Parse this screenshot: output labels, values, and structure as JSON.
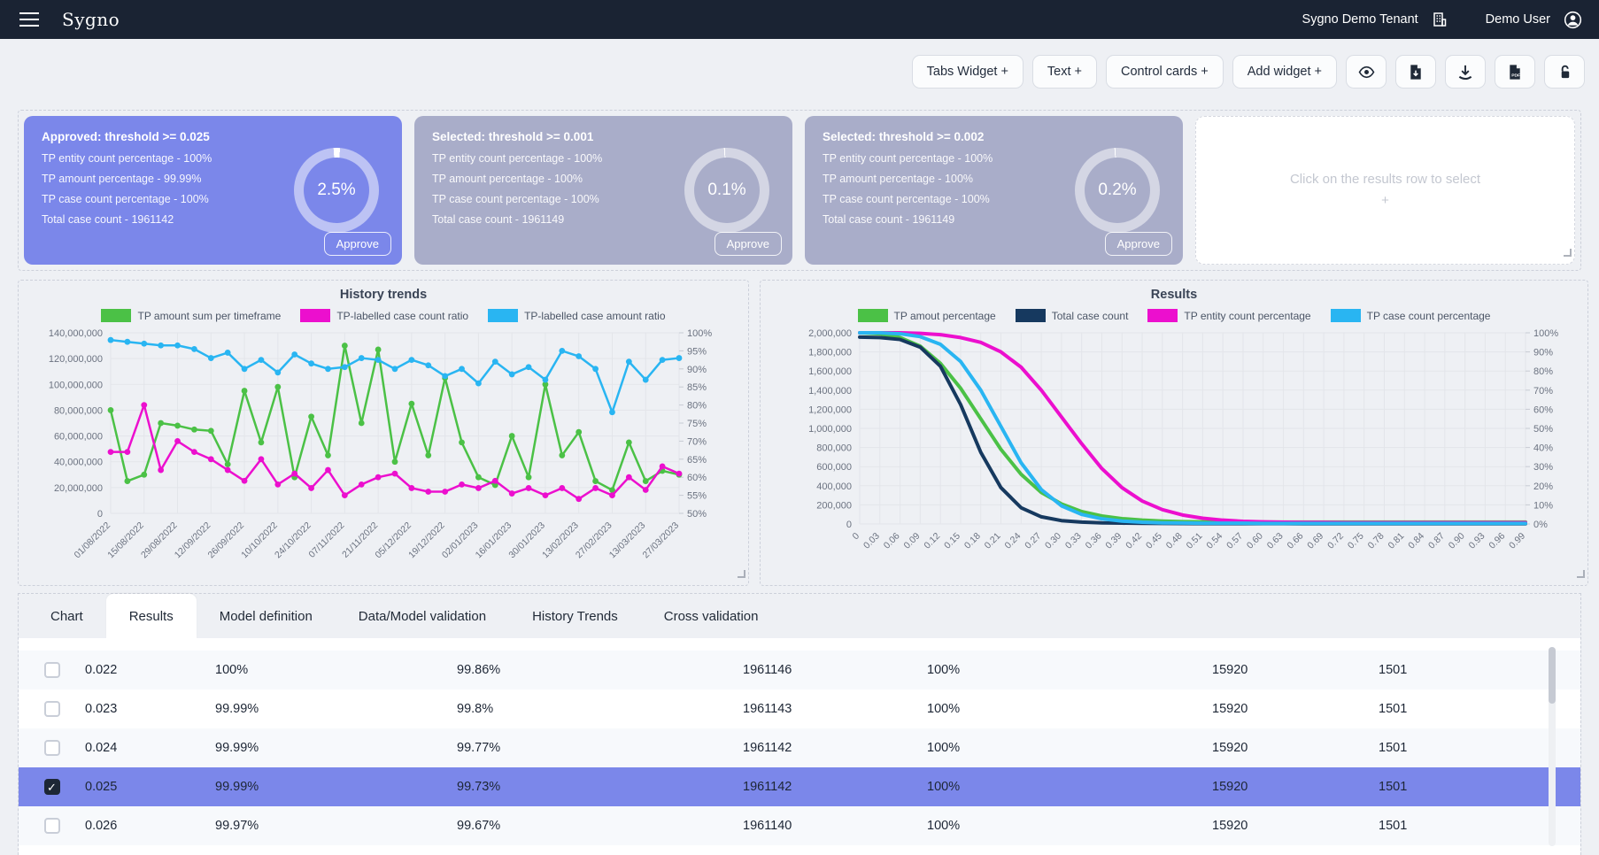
{
  "navbar": {
    "brand": "Sygno",
    "tenant": "Sygno Demo Tenant",
    "user": "Demo User"
  },
  "toolbar": {
    "text_buttons": [
      "Tabs Widget +",
      "Text +",
      "Control cards +",
      "Add widget +"
    ],
    "icon_buttons": [
      "eye-icon",
      "file-export-icon",
      "download-icon",
      "pdf-export-icon",
      "unlock-icon"
    ]
  },
  "cards": [
    {
      "title": "Approved: threshold >= 0.025",
      "lines": [
        "TP entity count percentage - 100%",
        "TP amount percentage - 99.99%",
        "TP case count percentage - 100%",
        "Total case count - 1961142"
      ],
      "donut_value": "2.5%",
      "donut_pct": 2.5,
      "approve_label": "Approve",
      "bg": "#7b87ea"
    },
    {
      "title": "Selected: threshold >= 0.001",
      "lines": [
        "TP entity count percentage - 100%",
        "TP amount percentage - 100%",
        "TP case count percentage - 100%",
        "Total case count - 1961149"
      ],
      "donut_value": "0.1%",
      "donut_pct": 0.1,
      "approve_label": "Approve",
      "bg": "#a9adc9"
    },
    {
      "title": "Selected: threshold >= 0.002",
      "lines": [
        "TP entity count percentage - 100%",
        "TP amount percentage - 100%",
        "TP case count percentage - 100%",
        "Total case count - 1961149"
      ],
      "donut_value": "0.2%",
      "donut_pct": 0.2,
      "approve_label": "Approve",
      "bg": "#a9adc9"
    }
  ],
  "placeholder_card": {
    "text": "Click on the results row to select +"
  },
  "chart_data": [
    {
      "type": "line",
      "title": "History trends",
      "legend_position": "top",
      "grid": true,
      "markers": true,
      "x_labels": [
        "01/08/2022",
        "15/08/2022",
        "29/08/2022",
        "12/09/2022",
        "26/09/2022",
        "10/10/2022",
        "24/10/2022",
        "07/11/2022",
        "21/11/2022",
        "05/12/2022",
        "19/12/2022",
        "02/01/2023",
        "16/01/2023",
        "30/01/2023",
        "13/02/2023",
        "27/02/2023",
        "13/03/2023",
        "27/03/2023"
      ],
      "left_axis": {
        "min": 0,
        "max": 140000000,
        "step": 20000000,
        "format": "number"
      },
      "right_axis": {
        "min": 50,
        "max": 100,
        "step": 5,
        "format": "percent"
      },
      "series": [
        {
          "name": "TP amount sum per timeframe",
          "color": "#4bc146",
          "axis": "left",
          "values": [
            80000000,
            25000000,
            30000000,
            70000000,
            68000000,
            65000000,
            64000000,
            38000000,
            95000000,
            55000000,
            98000000,
            28000000,
            75000000,
            45000000,
            130000000,
            70000000,
            127000000,
            40000000,
            85000000,
            45000000,
            105000000,
            55000000,
            28000000,
            22000000,
            60000000,
            28000000,
            100000000,
            45000000,
            63000000,
            25000000,
            18000000,
            55000000,
            25000000,
            33000000,
            30000000
          ]
        },
        {
          "name": "TP-labelled case count ratio",
          "color": "#ec0fce",
          "axis": "right",
          "values": [
            67,
            67,
            80,
            62,
            70,
            67,
            65,
            62,
            59,
            65,
            58,
            61,
            57,
            62,
            55,
            58,
            60,
            61,
            57,
            56,
            56,
            58,
            57,
            59,
            55.5,
            57,
            55,
            57,
            54,
            57,
            55,
            60,
            56.5,
            63,
            61
          ]
        },
        {
          "name": "TP-labelled case amount ratio",
          "color": "#29b5f2",
          "axis": "right",
          "values": [
            98,
            97.5,
            97,
            96.5,
            96.5,
            95.5,
            93,
            94.5,
            90,
            92.5,
            89,
            94,
            91.5,
            90,
            90.5,
            93,
            92.5,
            90,
            92.5,
            91,
            88,
            90,
            86,
            92,
            88.5,
            90.5,
            87,
            95,
            93.5,
            90,
            78,
            92,
            87,
            92.5,
            93
          ]
        }
      ]
    },
    {
      "type": "line",
      "title": "Results",
      "legend_position": "top",
      "grid": true,
      "markers": false,
      "x_labels": [
        "0",
        "0.03",
        "0.06",
        "0.09",
        "0.12",
        "0.15",
        "0.18",
        "0.21",
        "0.24",
        "0.27",
        "0.30",
        "0.33",
        "0.36",
        "0.39",
        "0.42",
        "0.45",
        "0.48",
        "0.51",
        "0.54",
        "0.57",
        "0.60",
        "0.63",
        "0.66",
        "0.69",
        "0.72",
        "0.75",
        "0.78",
        "0.81",
        "0.84",
        "0.87",
        "0.90",
        "0.93",
        "0.96",
        "0.99"
      ],
      "left_axis": {
        "min": 0,
        "max": 2000000,
        "step": 200000,
        "format": "number"
      },
      "right_axis": {
        "min": 0,
        "max": 100,
        "step": 10,
        "format": "percent"
      },
      "series": [
        {
          "name": "TP amout percentage",
          "color": "#4bc146",
          "axis": "right",
          "values": [
            100,
            99.5,
            97.5,
            93,
            84,
            71,
            55,
            39,
            26,
            16.5,
            10.5,
            6.5,
            4.2,
            2.8,
            2,
            1.5,
            1.2,
            1.1,
            1,
            1,
            1,
            1,
            1,
            1,
            1,
            1,
            1,
            1,
            1,
            1,
            1,
            1,
            1,
            1
          ]
        },
        {
          "name": "Total case count",
          "color": "#16395f",
          "axis": "left",
          "values": [
            1955000,
            1950000,
            1930000,
            1850000,
            1650000,
            1250000,
            750000,
            380000,
            170000,
            75000,
            35000,
            20000,
            12000,
            9000,
            7000,
            6000,
            5000,
            4000,
            4000,
            3000,
            3000,
            3000,
            2000,
            2000,
            2000,
            2000,
            2000,
            2000,
            2000,
            2000,
            2000,
            2000,
            2000,
            2000
          ]
        },
        {
          "name": "TP entity count percentage",
          "color": "#ec0fce",
          "axis": "right",
          "values": [
            100,
            100,
            100,
            99.7,
            99,
            97.5,
            95,
            90,
            82,
            70,
            56,
            42,
            29,
            19,
            12,
            7.5,
            4.7,
            3,
            2,
            1.4,
            1.1,
            0.9,
            0.8,
            0.8,
            0.7,
            0.7,
            0.7,
            0.7,
            0.7,
            0.7,
            0.7,
            0.7,
            0.7,
            0.7
          ]
        },
        {
          "name": "TP case count percentage",
          "color": "#29b5f2",
          "axis": "right",
          "values": [
            100,
            100,
            99.5,
            98,
            94,
            85,
            70,
            51,
            32,
            18,
            9.5,
            5,
            2.7,
            1.5,
            0.9,
            0.6,
            0.5,
            0.4,
            0.4,
            0.4,
            0.3,
            0.3,
            0.3,
            0.3,
            0.3,
            0.3,
            0.3,
            0.3,
            0.3,
            0.3,
            0.3,
            0.3,
            0.3,
            0.3
          ]
        }
      ]
    }
  ],
  "tabs": {
    "items": [
      "Chart",
      "Results",
      "Model definition",
      "Data/Model validation",
      "History Trends",
      "Cross validation"
    ],
    "active": "Results"
  },
  "table": {
    "rows": [
      {
        "selected": false,
        "checked": false,
        "cells": [
          "0.022",
          "100%",
          "99.86%",
          "1961146",
          "100%",
          "15920",
          "1501"
        ]
      },
      {
        "selected": false,
        "checked": false,
        "cells": [
          "0.023",
          "99.99%",
          "99.8%",
          "1961143",
          "100%",
          "15920",
          "1501"
        ]
      },
      {
        "selected": false,
        "checked": false,
        "cells": [
          "0.024",
          "99.99%",
          "99.77%",
          "1961142",
          "100%",
          "15920",
          "1501"
        ]
      },
      {
        "selected": true,
        "checked": true,
        "cells": [
          "0.025",
          "99.99%",
          "99.73%",
          "1961142",
          "100%",
          "15920",
          "1501"
        ]
      },
      {
        "selected": false,
        "checked": false,
        "cells": [
          "0.026",
          "99.97%",
          "99.67%",
          "1961140",
          "100%",
          "15920",
          "1501"
        ]
      }
    ]
  },
  "colors": {
    "accent": "#7b87ea",
    "card_gray": "#a9adc9",
    "navbar": "#1a2333",
    "green": "#4bc146",
    "magenta": "#ec0fce",
    "cyan": "#29b5f2",
    "navy": "#16395f"
  }
}
